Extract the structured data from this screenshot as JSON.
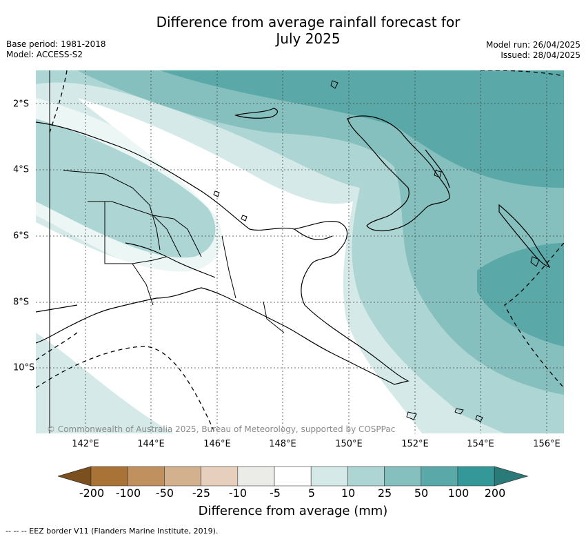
{
  "title_line1": "Difference from average rainfall forecast for",
  "title_line2": "July 2025",
  "base_period": "Base period: 1981-2018",
  "model": "Model: ACCESS-S2",
  "model_run": "Model run: 26/04/2025",
  "issued": "Issued: 28/04/2025",
  "copyright": "© Commonwealth of Australia 2025, Bureau of Meteorology, supported by COSPPac",
  "longitudes": [
    "142°E",
    "144°E",
    "146°E",
    "148°E",
    "150°E",
    "152°E",
    "154°E",
    "156°E"
  ],
  "latitudes": [
    "2°S",
    "4°S",
    "6°S",
    "8°S",
    "10°S"
  ],
  "colorbar": {
    "ticks": [
      "-200",
      "-100",
      "-50",
      "-25",
      "-10",
      "-5",
      "5",
      "10",
      "25",
      "50",
      "100",
      "200"
    ],
    "colors": [
      "#7c4f1e",
      "#a97338",
      "#c0905f",
      "#d3b08e",
      "#e6d0bd",
      "#ebebe8",
      "#ffffff",
      "#d5eae8",
      "#acd5d4",
      "#85bfbe",
      "#5aa8a8",
      "#349898",
      "#2a7a7a"
    ],
    "label": "Difference from average (mm)"
  },
  "footnote": "-- -- -- EEZ border V11 (Flanders Marine Institute, 2019)."
}
